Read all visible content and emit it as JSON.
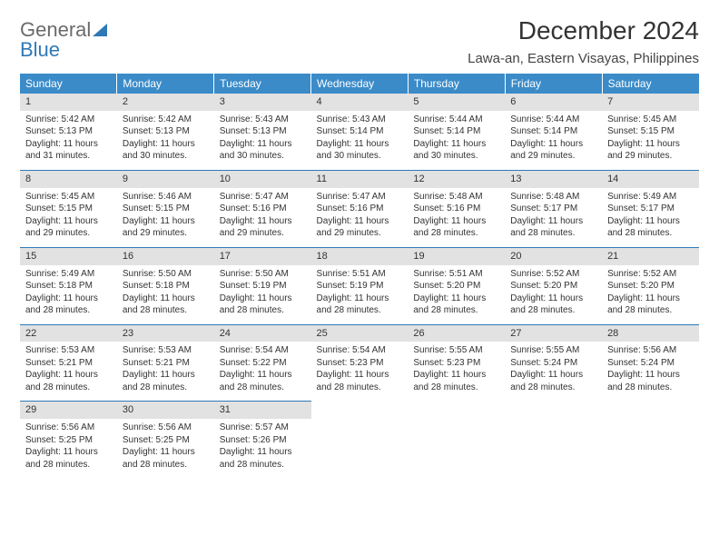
{
  "logo": {
    "line1": "General",
    "line2": "Blue"
  },
  "title": "December 2024",
  "location": "Lawa-an, Eastern Visayas, Philippines",
  "colors": {
    "header_bg": "#3b8bc9",
    "header_fg": "#ffffff",
    "rule": "#2e79b6",
    "daynum_bg": "#e2e2e2",
    "text": "#333333",
    "logo_gray": "#6b6b6b",
    "logo_blue": "#2e79b6"
  },
  "weekdays": [
    "Sunday",
    "Monday",
    "Tuesday",
    "Wednesday",
    "Thursday",
    "Friday",
    "Saturday"
  ],
  "weeks": [
    [
      {
        "n": "1",
        "sr": "Sunrise: 5:42 AM",
        "ss": "Sunset: 5:13 PM",
        "d1": "Daylight: 11 hours",
        "d2": "and 31 minutes."
      },
      {
        "n": "2",
        "sr": "Sunrise: 5:42 AM",
        "ss": "Sunset: 5:13 PM",
        "d1": "Daylight: 11 hours",
        "d2": "and 30 minutes."
      },
      {
        "n": "3",
        "sr": "Sunrise: 5:43 AM",
        "ss": "Sunset: 5:13 PM",
        "d1": "Daylight: 11 hours",
        "d2": "and 30 minutes."
      },
      {
        "n": "4",
        "sr": "Sunrise: 5:43 AM",
        "ss": "Sunset: 5:14 PM",
        "d1": "Daylight: 11 hours",
        "d2": "and 30 minutes."
      },
      {
        "n": "5",
        "sr": "Sunrise: 5:44 AM",
        "ss": "Sunset: 5:14 PM",
        "d1": "Daylight: 11 hours",
        "d2": "and 30 minutes."
      },
      {
        "n": "6",
        "sr": "Sunrise: 5:44 AM",
        "ss": "Sunset: 5:14 PM",
        "d1": "Daylight: 11 hours",
        "d2": "and 29 minutes."
      },
      {
        "n": "7",
        "sr": "Sunrise: 5:45 AM",
        "ss": "Sunset: 5:15 PM",
        "d1": "Daylight: 11 hours",
        "d2": "and 29 minutes."
      }
    ],
    [
      {
        "n": "8",
        "sr": "Sunrise: 5:45 AM",
        "ss": "Sunset: 5:15 PM",
        "d1": "Daylight: 11 hours",
        "d2": "and 29 minutes."
      },
      {
        "n": "9",
        "sr": "Sunrise: 5:46 AM",
        "ss": "Sunset: 5:15 PM",
        "d1": "Daylight: 11 hours",
        "d2": "and 29 minutes."
      },
      {
        "n": "10",
        "sr": "Sunrise: 5:47 AM",
        "ss": "Sunset: 5:16 PM",
        "d1": "Daylight: 11 hours",
        "d2": "and 29 minutes."
      },
      {
        "n": "11",
        "sr": "Sunrise: 5:47 AM",
        "ss": "Sunset: 5:16 PM",
        "d1": "Daylight: 11 hours",
        "d2": "and 29 minutes."
      },
      {
        "n": "12",
        "sr": "Sunrise: 5:48 AM",
        "ss": "Sunset: 5:16 PM",
        "d1": "Daylight: 11 hours",
        "d2": "and 28 minutes."
      },
      {
        "n": "13",
        "sr": "Sunrise: 5:48 AM",
        "ss": "Sunset: 5:17 PM",
        "d1": "Daylight: 11 hours",
        "d2": "and 28 minutes."
      },
      {
        "n": "14",
        "sr": "Sunrise: 5:49 AM",
        "ss": "Sunset: 5:17 PM",
        "d1": "Daylight: 11 hours",
        "d2": "and 28 minutes."
      }
    ],
    [
      {
        "n": "15",
        "sr": "Sunrise: 5:49 AM",
        "ss": "Sunset: 5:18 PM",
        "d1": "Daylight: 11 hours",
        "d2": "and 28 minutes."
      },
      {
        "n": "16",
        "sr": "Sunrise: 5:50 AM",
        "ss": "Sunset: 5:18 PM",
        "d1": "Daylight: 11 hours",
        "d2": "and 28 minutes."
      },
      {
        "n": "17",
        "sr": "Sunrise: 5:50 AM",
        "ss": "Sunset: 5:19 PM",
        "d1": "Daylight: 11 hours",
        "d2": "and 28 minutes."
      },
      {
        "n": "18",
        "sr": "Sunrise: 5:51 AM",
        "ss": "Sunset: 5:19 PM",
        "d1": "Daylight: 11 hours",
        "d2": "and 28 minutes."
      },
      {
        "n": "19",
        "sr": "Sunrise: 5:51 AM",
        "ss": "Sunset: 5:20 PM",
        "d1": "Daylight: 11 hours",
        "d2": "and 28 minutes."
      },
      {
        "n": "20",
        "sr": "Sunrise: 5:52 AM",
        "ss": "Sunset: 5:20 PM",
        "d1": "Daylight: 11 hours",
        "d2": "and 28 minutes."
      },
      {
        "n": "21",
        "sr": "Sunrise: 5:52 AM",
        "ss": "Sunset: 5:20 PM",
        "d1": "Daylight: 11 hours",
        "d2": "and 28 minutes."
      }
    ],
    [
      {
        "n": "22",
        "sr": "Sunrise: 5:53 AM",
        "ss": "Sunset: 5:21 PM",
        "d1": "Daylight: 11 hours",
        "d2": "and 28 minutes."
      },
      {
        "n": "23",
        "sr": "Sunrise: 5:53 AM",
        "ss": "Sunset: 5:21 PM",
        "d1": "Daylight: 11 hours",
        "d2": "and 28 minutes."
      },
      {
        "n": "24",
        "sr": "Sunrise: 5:54 AM",
        "ss": "Sunset: 5:22 PM",
        "d1": "Daylight: 11 hours",
        "d2": "and 28 minutes."
      },
      {
        "n": "25",
        "sr": "Sunrise: 5:54 AM",
        "ss": "Sunset: 5:23 PM",
        "d1": "Daylight: 11 hours",
        "d2": "and 28 minutes."
      },
      {
        "n": "26",
        "sr": "Sunrise: 5:55 AM",
        "ss": "Sunset: 5:23 PM",
        "d1": "Daylight: 11 hours",
        "d2": "and 28 minutes."
      },
      {
        "n": "27",
        "sr": "Sunrise: 5:55 AM",
        "ss": "Sunset: 5:24 PM",
        "d1": "Daylight: 11 hours",
        "d2": "and 28 minutes."
      },
      {
        "n": "28",
        "sr": "Sunrise: 5:56 AM",
        "ss": "Sunset: 5:24 PM",
        "d1": "Daylight: 11 hours",
        "d2": "and 28 minutes."
      }
    ],
    [
      {
        "n": "29",
        "sr": "Sunrise: 5:56 AM",
        "ss": "Sunset: 5:25 PM",
        "d1": "Daylight: 11 hours",
        "d2": "and 28 minutes."
      },
      {
        "n": "30",
        "sr": "Sunrise: 5:56 AM",
        "ss": "Sunset: 5:25 PM",
        "d1": "Daylight: 11 hours",
        "d2": "and 28 minutes."
      },
      {
        "n": "31",
        "sr": "Sunrise: 5:57 AM",
        "ss": "Sunset: 5:26 PM",
        "d1": "Daylight: 11 hours",
        "d2": "and 28 minutes."
      },
      null,
      null,
      null,
      null
    ]
  ]
}
